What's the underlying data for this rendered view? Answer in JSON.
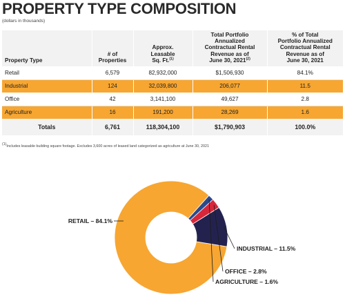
{
  "title": "PROPERTY TYPE COMPOSITION",
  "subtitle": "(dollars in thousands)",
  "table": {
    "headers": {
      "type": "Property Type",
      "props": "# of\nProperties",
      "sqft": "Approx.\nLeasable\nSq. Ft.",
      "sqft_sup": "(1)",
      "revenue": "Total Portfolio\nAnnualized\nContractual Rental\nRevenue as of\nJune 30, 2021",
      "revenue_sup": "(2)",
      "pct": "% of Total\nPortfolio Annualized\nContractual Rental\nRevenue as of\nJune 30, 2021"
    },
    "rows": [
      {
        "type": "Retail",
        "props": "6,579",
        "sqft": "82,932,000",
        "revenue": "$1,506,930",
        "pct": "84.1%"
      },
      {
        "type": "Industrial",
        "props": "124",
        "sqft": "32,039,800",
        "revenue": "206,077",
        "pct": "11.5"
      },
      {
        "type": "Office",
        "props": "42",
        "sqft": "3,141,100",
        "revenue": "49,627",
        "pct": "2.8"
      },
      {
        "type": "Agriculture",
        "props": "16",
        "sqft": "191,200",
        "revenue": "28,269",
        "pct": "1.6"
      }
    ],
    "totals": {
      "label": "Totals",
      "props": "6,761",
      "sqft": "118,304,100",
      "revenue": "$1,790,903",
      "pct": "100.0%"
    }
  },
  "footnote_marker": "(1)",
  "footnote": "Includes leasable building square footage. Excludes 3,600 acres of leased land categorized as agriculture at June 30, 2021",
  "chart_data": {
    "type": "pie",
    "donut": true,
    "slices": [
      {
        "label": "RETAIL – 84.1%",
        "value": 84.1,
        "color": "#f7a631"
      },
      {
        "label": "INDUSTRIAL – 11.5%",
        "value": 11.5,
        "color": "#23224f"
      },
      {
        "label": "OFFICE – 2.8%",
        "value": 2.8,
        "color": "#d6283a"
      },
      {
        "label": "AGRICULTURE – 1.6%",
        "value": 1.6,
        "color": "#2b4a8c"
      }
    ]
  }
}
